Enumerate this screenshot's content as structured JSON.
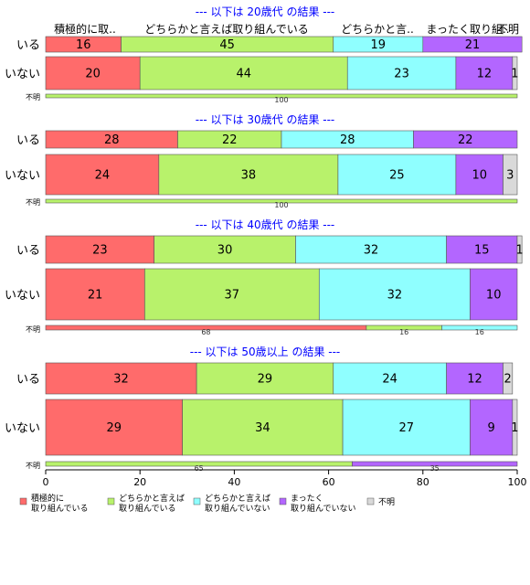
{
  "colors": {
    "積極的に取り組んでいる": "#ff6b6b",
    "どちらかと言えば取り組んでいる": "#b8f26b",
    "どちらかと言えば取り組んでいない": "#8fffff",
    "まったく取り組んでいない": "#b366ff",
    "不明": "#d9d9d9",
    "title": "#0000ff"
  },
  "top_labels": [
    "積極的に取..",
    "どちらかと言えば取り組んでいる",
    "どちらかと言..",
    "まったく取り組..",
    "不明"
  ],
  "legend": [
    {
      "line1": "積極的に",
      "line2": "取り組んでいる"
    },
    {
      "line1": "どちらかと言えば",
      "line2": "取り組んでいる"
    },
    {
      "line1": "どちらかと言えば",
      "line2": "取り組んでいない"
    },
    {
      "line1": "まったく",
      "line2": "取り組んでいない"
    },
    {
      "line1": "不明",
      "line2": ""
    }
  ],
  "chart_data": {
    "type": "bar",
    "orientation": "horizontal-stacked-100",
    "categories_stack": [
      "積極的に取り組んでいる",
      "どちらかと言えば取り組んでいる",
      "どちらかと言えば取り組んでいない",
      "まったく取り組んでいない",
      "不明"
    ],
    "xlim": [
      0,
      100
    ],
    "xticks": [
      0,
      20,
      40,
      60,
      80,
      100
    ],
    "legend_position": "bottom",
    "panels": [
      {
        "title": "--- 以下は 20歳代 の結果 ---",
        "rows": [
          {
            "label": "いる",
            "values": [
              16,
              45,
              19,
              21,
              0
            ]
          },
          {
            "label": "いない",
            "values": [
              20,
              44,
              23,
              12,
              1
            ]
          }
        ],
        "unknown": {
          "label": "不明",
          "values": [
            0,
            100,
            0,
            0,
            0
          ]
        }
      },
      {
        "title": "--- 以下は 30歳代 の結果 ---",
        "rows": [
          {
            "label": "いる",
            "values": [
              28,
              22,
              28,
              22,
              0
            ]
          },
          {
            "label": "いない",
            "values": [
              24,
              38,
              25,
              10,
              3
            ]
          }
        ],
        "unknown": {
          "label": "不明",
          "values": [
            0,
            100,
            0,
            0,
            0
          ]
        }
      },
      {
        "title": "--- 以下は 40歳代 の結果 ---",
        "rows": [
          {
            "label": "いる",
            "values": [
              23,
              30,
              32,
              15,
              1
            ]
          },
          {
            "label": "いない",
            "values": [
              21,
              37,
              32,
              10,
              0
            ]
          }
        ],
        "unknown": {
          "label": "不明",
          "values": [
            68,
            16,
            16,
            0,
            0
          ]
        }
      },
      {
        "title": "--- 以下は 50歳以上 の結果 ---",
        "rows": [
          {
            "label": "いる",
            "values": [
              32,
              29,
              24,
              12,
              2
            ]
          },
          {
            "label": "いない",
            "values": [
              29,
              34,
              27,
              9,
              1
            ]
          }
        ],
        "unknown": {
          "label": "不明",
          "values": [
            0,
            65,
            0,
            35,
            0
          ]
        }
      }
    ]
  }
}
